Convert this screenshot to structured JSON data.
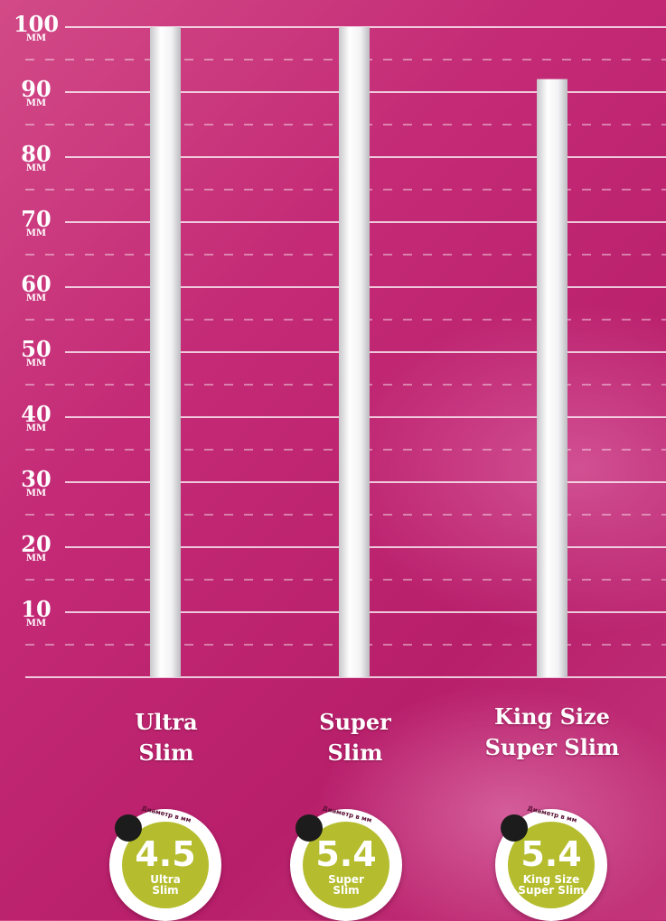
{
  "chart_data": {
    "type": "bar",
    "categories": [
      "Ultra Slim",
      "Super Slim",
      "King Size Super Slim"
    ],
    "category_lines": [
      [
        "Ultra",
        "Slim"
      ],
      [
        "Super",
        "Slim"
      ],
      [
        "King Size",
        "Super Slim"
      ]
    ],
    "values": [
      100,
      100,
      92
    ],
    "ylim": [
      0,
      100
    ],
    "y_ticks": [
      10,
      20,
      30,
      40,
      50,
      60,
      70,
      80,
      90,
      100
    ],
    "y_tick_unit": "ММ",
    "grid": true,
    "title": "",
    "xlabel": "",
    "ylabel": ""
  },
  "badges": {
    "caption": "Диаметр в мм",
    "items": [
      {
        "value": "4.5",
        "name_lines": [
          "Ultra",
          "Slim"
        ]
      },
      {
        "value": "5.4",
        "name_lines": [
          "Super",
          "Slim"
        ]
      },
      {
        "value": "5.4",
        "name_lines": [
          "King Size",
          "Super Slim"
        ]
      }
    ]
  },
  "colors": {
    "background": "#c42a76",
    "bar": "#ffffff",
    "badge_ring": "#ffffff",
    "badge_fill": "#b5bd2e",
    "badge_dot": "#1c1c1c"
  }
}
